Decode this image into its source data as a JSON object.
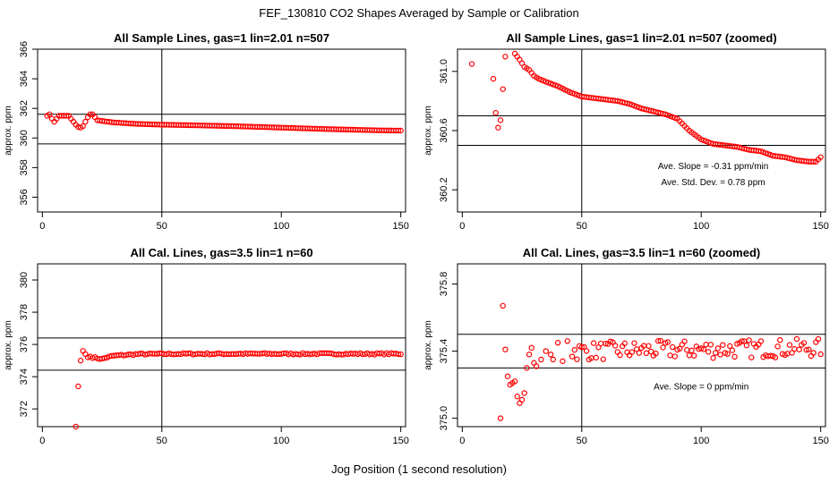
{
  "figure": {
    "title": "FEF_130810  CO2 Shapes Averaged by Sample or Calibration",
    "xlabel": "Jog Position (1 second resolution)"
  },
  "chart_data": [
    {
      "type": "scatter",
      "title": "All Sample Lines, gas=1 lin=2.01 n=507",
      "ylabel": "approx. ppm",
      "xlim": [
        -2,
        152
      ],
      "ylim": [
        355,
        366
      ],
      "xticks": [
        0,
        50,
        100,
        150
      ],
      "yticks": [
        356,
        358,
        360,
        362,
        364,
        366
      ],
      "vline": 50,
      "hlines": [
        361.6,
        359.6
      ],
      "point_color": "#ff0000",
      "curve": {
        "x_range": [
          2,
          150
        ],
        "knots": [
          [
            2,
            361.5
          ],
          [
            3,
            361.6
          ],
          [
            4,
            361.3
          ],
          [
            5,
            361.1
          ],
          [
            6,
            361.3
          ],
          [
            7,
            361.5
          ],
          [
            9,
            361.5
          ],
          [
            11,
            361.5
          ],
          [
            12,
            361.3
          ],
          [
            13,
            361.1
          ],
          [
            14,
            360.9
          ],
          [
            15,
            360.75
          ],
          [
            16,
            360.7
          ],
          [
            17,
            360.8
          ],
          [
            18,
            361.1
          ],
          [
            19,
            361.4
          ],
          [
            20,
            361.6
          ],
          [
            21,
            361.6
          ],
          [
            22,
            361.4
          ],
          [
            23,
            361.2
          ],
          [
            25,
            361.15
          ],
          [
            30,
            361.05
          ],
          [
            40,
            360.95
          ],
          [
            50,
            360.9
          ],
          [
            60,
            360.87
          ],
          [
            80,
            360.8
          ],
          [
            100,
            360.7
          ],
          [
            120,
            360.6
          ],
          [
            140,
            360.52
          ],
          [
            150,
            360.5
          ]
        ]
      },
      "annotations": []
    },
    {
      "type": "scatter",
      "title": "All Sample Lines, gas=1 lin=2.01 n=507 (zoomed)",
      "ylabel": "approx. ppm",
      "xlim": [
        -2,
        152
      ],
      "ylim": [
        360.05,
        361.15
      ],
      "xticks": [
        0,
        50,
        100,
        150
      ],
      "yticks": [
        360.2,
        360.6,
        361.0
      ],
      "vline": 50,
      "hlines": [
        360.7,
        360.5
      ],
      "point_color": "#ff0000",
      "points": [
        [
          4,
          361.05
        ],
        [
          13,
          360.95
        ],
        [
          14,
          360.72
        ],
        [
          15,
          360.62
        ],
        [
          16,
          360.67
        ],
        [
          17,
          360.88
        ],
        [
          18,
          361.1
        ],
        [
          22,
          361.12
        ],
        [
          23,
          361.1
        ]
      ],
      "curve": {
        "x_range": [
          24,
          150
        ],
        "knots": [
          [
            24,
            361.08
          ],
          [
            26,
            361.03
          ],
          [
            28,
            361.01
          ],
          [
            30,
            360.97
          ],
          [
            32,
            360.95
          ],
          [
            35,
            360.93
          ],
          [
            40,
            360.9
          ],
          [
            45,
            360.86
          ],
          [
            50,
            360.83
          ],
          [
            55,
            360.82
          ],
          [
            60,
            360.81
          ],
          [
            65,
            360.8
          ],
          [
            70,
            360.78
          ],
          [
            75,
            360.75
          ],
          [
            80,
            360.73
          ],
          [
            85,
            360.71
          ],
          [
            90,
            360.68
          ],
          [
            95,
            360.6
          ],
          [
            100,
            360.54
          ],
          [
            105,
            360.51
          ],
          [
            110,
            360.5
          ],
          [
            115,
            360.49
          ],
          [
            120,
            360.47
          ],
          [
            125,
            360.46
          ],
          [
            130,
            360.43
          ],
          [
            135,
            360.42
          ],
          [
            140,
            360.4
          ],
          [
            145,
            360.39
          ],
          [
            148,
            360.39
          ],
          [
            150,
            360.42
          ]
        ]
      },
      "annotations": [
        {
          "x": 105,
          "y": 360.34,
          "text": "Ave. Slope =  -0.31  ppm/min"
        },
        {
          "x": 105,
          "y": 360.23,
          "text": "Ave. Std. Dev. =  0.78  ppm"
        }
      ]
    },
    {
      "type": "scatter",
      "title": "All Cal. Lines, gas=3.5 lin=1 n=60",
      "ylabel": "approx. ppm",
      "xlim": [
        -2,
        152
      ],
      "ylim": [
        370.9,
        381
      ],
      "xticks": [
        0,
        50,
        100,
        150
      ],
      "yticks": [
        372,
        374,
        376,
        378,
        380
      ],
      "vline": 50,
      "hlines": [
        376.4,
        374.4
      ],
      "point_color": "#ff0000",
      "points": [
        [
          14,
          370.9
        ],
        [
          15,
          373.4
        ],
        [
          16,
          375.0
        ],
        [
          17,
          375.6
        ],
        [
          18,
          375.4
        ],
        [
          19,
          375.2
        ],
        [
          20,
          375.25
        ]
      ],
      "curve": {
        "x_range": [
          21,
          150
        ],
        "knots": [
          [
            21,
            375.2
          ],
          [
            23,
            375.15
          ],
          [
            25,
            375.1
          ],
          [
            27,
            375.2
          ],
          [
            30,
            375.3
          ],
          [
            40,
            375.4
          ],
          [
            60,
            375.42
          ],
          [
            100,
            375.42
          ],
          [
            150,
            375.42
          ]
        ],
        "noise": 0.05
      },
      "annotations": []
    },
    {
      "type": "scatter",
      "title": "All Cal. Lines, gas=3.5 lin=1 n=60 (zoomed)",
      "ylabel": "approx. ppm",
      "xlim": [
        -2,
        152
      ],
      "ylim": [
        374.95,
        375.92
      ],
      "xticks": [
        0,
        50,
        100,
        150
      ],
      "yticks": [
        375.0,
        375.4,
        375.8
      ],
      "vline": 50,
      "hlines": [
        375.5,
        375.3
      ],
      "point_color": "#ff0000",
      "points": [
        [
          16,
          375.0
        ],
        [
          17,
          375.67
        ],
        [
          18,
          375.41
        ],
        [
          19,
          375.25
        ],
        [
          20,
          375.2
        ],
        [
          21,
          375.21
        ],
        [
          22,
          375.22
        ],
        [
          23,
          375.13
        ],
        [
          24,
          375.09
        ],
        [
          25,
          375.11
        ],
        [
          26,
          375.15
        ],
        [
          27,
          375.3
        ],
        [
          28,
          375.38
        ],
        [
          29,
          375.42
        ],
        [
          30,
          375.33
        ],
        [
          31,
          375.31
        ],
        [
          33,
          375.35
        ],
        [
          35,
          375.4
        ],
        [
          37,
          375.38
        ],
        [
          38,
          375.35
        ],
        [
          40,
          375.45
        ],
        [
          42,
          375.34
        ],
        [
          44,
          375.46
        ]
      ],
      "curve": {
        "x_range": [
          46,
          150
        ],
        "knots": [
          [
            46,
            375.4
          ],
          [
            150,
            375.42
          ]
        ],
        "noise": 0.055
      },
      "annotations": [
        {
          "x": 100,
          "y": 375.17,
          "text": "Ave. Slope =  0  ppm/min"
        }
      ]
    }
  ]
}
